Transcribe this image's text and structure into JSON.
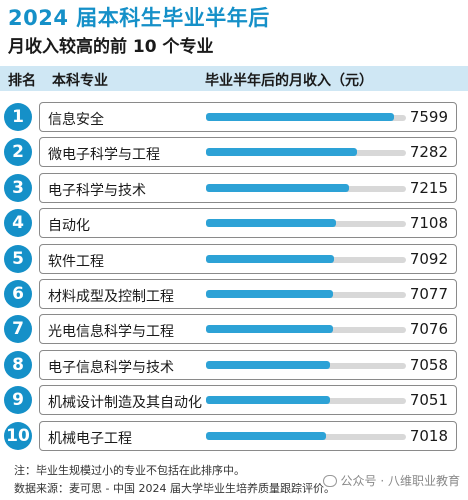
{
  "header": {
    "title": "2024 届本科生毕业半年后",
    "subtitle": "月收入较高的前 10 个专业"
  },
  "table_header": {
    "rank": "排名",
    "major": "本科专业",
    "income": "毕业半年后的月收入（元）"
  },
  "chart_data": {
    "type": "bar",
    "title": "2024 届本科生毕业半年后 月收入较高的前 10 个专业",
    "categories": [
      "信息安全",
      "微电子科学与工程",
      "电子科学与技术",
      "自动化",
      "软件工程",
      "材料成型及控制工程",
      "光电信息科学与工程",
      "电子信息科学与技术",
      "机械设计制造及其自动化",
      "机械电子工程"
    ],
    "ranks": [
      "1",
      "2",
      "3",
      "4",
      "5",
      "6",
      "7",
      "8",
      "9",
      "10"
    ],
    "values": [
      7599,
      7282,
      7215,
      7108,
      7092,
      7077,
      7076,
      7058,
      7051,
      7018
    ],
    "ylabel": "毕业半年后的月收入（元）",
    "colors": {
      "bar": "#2da2d6",
      "track": "#d8d8d8",
      "rank": "#1590c8"
    }
  },
  "notes": {
    "note1": "注：毕业生规模过小的专业不包括在此排序中。",
    "note2": "数据来源：麦可思 - 中国 2024 届大学毕业生培养质量跟踪评价。"
  },
  "watermark": "公众号 · 八维职业教育"
}
